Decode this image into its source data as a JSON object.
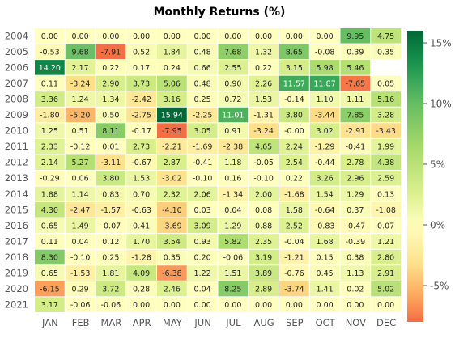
{
  "chart_data": {
    "type": "heatmap",
    "title": "Monthly Returns (%)",
    "xlabel": "",
    "ylabel": "",
    "x_categories": [
      "JAN",
      "FEB",
      "MAR",
      "APR",
      "MAY",
      "JUN",
      "JUL",
      "AUG",
      "SEP",
      "OCT",
      "NOV",
      "DEC"
    ],
    "y_categories": [
      "2004",
      "2005",
      "2006",
      "2007",
      "2008",
      "2009",
      "2010",
      "2011",
      "2012",
      "2013",
      "2014",
      "2015",
      "2016",
      "2017",
      "2018",
      "2019",
      "2020",
      "2021"
    ],
    "values": [
      [
        0.0,
        0.0,
        0.0,
        0.0,
        0.0,
        0.0,
        0.0,
        0.0,
        0.0,
        0.0,
        9.95,
        4.75
      ],
      [
        -0.53,
        9.68,
        -7.91,
        0.52,
        1.84,
        0.48,
        7.68,
        1.32,
        8.65,
        -0.08,
        0.39,
        0.35
      ],
      [
        14.2,
        2.17,
        0.22,
        0.17,
        0.24,
        0.66,
        2.55,
        0.22,
        3.15,
        5.98,
        5.46,
        null
      ],
      [
        0.11,
        -3.24,
        2.9,
        3.73,
        5.06,
        0.48,
        0.9,
        2.26,
        11.57,
        11.87,
        -7.65,
        0.05
      ],
      [
        3.36,
        1.24,
        1.34,
        -2.42,
        3.16,
        0.25,
        0.72,
        1.53,
        -0.14,
        1.1,
        1.11,
        5.16
      ],
      [
        -1.8,
        -5.2,
        0.5,
        -2.75,
        15.94,
        -2.25,
        11.01,
        -1.31,
        3.8,
        -3.44,
        7.85,
        3.28
      ],
      [
        1.25,
        0.51,
        8.11,
        -0.17,
        -7.95,
        3.05,
        0.91,
        -3.24,
        -0.0,
        3.02,
        -2.91,
        -3.43
      ],
      [
        2.33,
        -0.12,
        0.01,
        2.73,
        -2.21,
        -1.69,
        -2.38,
        4.65,
        2.24,
        -1.29,
        -0.41,
        1.99
      ],
      [
        2.14,
        5.27,
        -3.11,
        -0.67,
        2.87,
        -0.41,
        1.18,
        -0.05,
        2.54,
        -0.44,
        2.78,
        4.38
      ],
      [
        -0.29,
        0.06,
        3.8,
        1.53,
        -3.02,
        -0.1,
        0.16,
        -0.1,
        0.22,
        3.26,
        2.96,
        2.59
      ],
      [
        1.88,
        1.14,
        0.83,
        0.7,
        2.32,
        2.06,
        -1.34,
        2.0,
        -1.68,
        1.54,
        1.29,
        0.13
      ],
      [
        4.3,
        -2.47,
        -1.57,
        -0.63,
        -4.1,
        0.03,
        0.04,
        0.08,
        1.58,
        -0.64,
        0.37,
        -1.08
      ],
      [
        0.65,
        1.49,
        -0.07,
        0.41,
        -3.69,
        3.09,
        1.29,
        0.88,
        2.52,
        -0.83,
        -0.47,
        0.07
      ],
      [
        0.11,
        0.04,
        0.12,
        1.7,
        3.54,
        0.93,
        5.82,
        2.35,
        -0.04,
        1.68,
        -0.39,
        1.21
      ],
      [
        8.3,
        -0.1,
        0.25,
        -1.28,
        0.35,
        0.2,
        -0.06,
        3.19,
        -1.21,
        0.15,
        0.38,
        2.8
      ],
      [
        0.65,
        -1.53,
        1.81,
        4.09,
        -6.38,
        1.22,
        1.51,
        3.89,
        -0.76,
        0.45,
        1.13,
        2.91
      ],
      [
        -6.15,
        0.29,
        3.72,
        0.28,
        2.46,
        0.04,
        8.25,
        2.89,
        -3.74,
        1.41,
        0.02,
        5.02
      ],
      [
        3.17,
        -0.06,
        -0.06,
        0.0,
        0.0,
        0.0,
        0.0,
        0.0,
        0.0,
        0.0,
        0.0,
        0.0
      ]
    ],
    "cell_labels": [
      [
        "0.00",
        "0.00",
        "0.00",
        "0.00",
        "0.00",
        "0.00",
        "0.00",
        "0.00",
        "0.00",
        "0.00",
        "9.95",
        "4.75"
      ],
      [
        "-0.53",
        "9.68",
        "-7.91",
        "0.52",
        "1.84",
        "0.48",
        "7.68",
        "1.32",
        "8.65",
        "-0.08",
        "0.39",
        "0.35"
      ],
      [
        "14.20",
        "2.17",
        "0.22",
        "0.17",
        "0.24",
        "0.66",
        "2.55",
        "0.22",
        "3.15",
        "5.98",
        "5.46",
        ""
      ],
      [
        "0.11",
        "-3.24",
        "2.90",
        "3.73",
        "5.06",
        "0.48",
        "0.90",
        "2.26",
        "11.57",
        "11.87",
        "-7.65",
        "0.05"
      ],
      [
        "3.36",
        "1.24",
        "1.34",
        "-2.42",
        "3.16",
        "0.25",
        "0.72",
        "1.53",
        "-0.14",
        "1.10",
        "1.11",
        "5.16"
      ],
      [
        "-1.80",
        "-5.20",
        "0.50",
        "-2.75",
        "15.94",
        "-2.25",
        "11.01",
        "-1.31",
        "3.80",
        "-3.44",
        "7.85",
        "3.28"
      ],
      [
        "1.25",
        "0.51",
        "8.11",
        "-0.17",
        "-7.95",
        "3.05",
        "0.91",
        "-3.24",
        "-0.00",
        "3.02",
        "-2.91",
        "-3.43"
      ],
      [
        "2.33",
        "-0.12",
        "0.01",
        "2.73",
        "-2.21",
        "-1.69",
        "-2.38",
        "4.65",
        "2.24",
        "-1.29",
        "-0.41",
        "1.99"
      ],
      [
        "2.14",
        "5.27",
        "-3.11",
        "-0.67",
        "2.87",
        "-0.41",
        "1.18",
        "-0.05",
        "2.54",
        "-0.44",
        "2.78",
        "4.38"
      ],
      [
        "-0.29",
        "0.06",
        "3.80",
        "1.53",
        "-3.02",
        "-0.10",
        "0.16",
        "-0.10",
        "0.22",
        "3.26",
        "2.96",
        "2.59"
      ],
      [
        "1.88",
        "1.14",
        "0.83",
        "0.70",
        "2.32",
        "2.06",
        "-1.34",
        "2.00",
        "-1.68",
        "1.54",
        "1.29",
        "0.13"
      ],
      [
        "4.30",
        "-2.47",
        "-1.57",
        "-0.63",
        "-4.10",
        "0.03",
        "0.04",
        "0.08",
        "1.58",
        "-0.64",
        "0.37",
        "-1.08"
      ],
      [
        "0.65",
        "1.49",
        "-0.07",
        "0.41",
        "-3.69",
        "3.09",
        "1.29",
        "0.88",
        "2.52",
        "-0.83",
        "-0.47",
        "0.07"
      ],
      [
        "0.11",
        "0.04",
        "0.12",
        "1.70",
        "3.54",
        "0.93",
        "5.82",
        "2.35",
        "-0.04",
        "1.68",
        "-0.39",
        "1.21"
      ],
      [
        "8.30",
        "-0.10",
        "0.25",
        "-1.28",
        "0.35",
        "0.20",
        "-0.06",
        "3.19",
        "-1.21",
        "0.15",
        "0.38",
        "2.80"
      ],
      [
        "0.65",
        "-1.53",
        "1.81",
        "4.09",
        "-6.38",
        "1.22",
        "1.51",
        "3.89",
        "-0.76",
        "0.45",
        "1.13",
        "2.91"
      ],
      [
        "-6.15",
        "0.29",
        "3.72",
        "0.28",
        "2.46",
        "0.04",
        "8.25",
        "2.89",
        "-3.74",
        "1.41",
        "0.02",
        "5.02"
      ],
      [
        "3.17",
        "-0.06",
        "-0.06",
        "0.00",
        "0.00",
        "0.00",
        "0.00",
        "0.00",
        "0.00",
        "0.00",
        "0.00",
        "0.00"
      ]
    ],
    "color_range": [
      -8,
      16
    ],
    "colorscale": "RdYlGn",
    "colorbar": {
      "ticks": [
        -5,
        0,
        5,
        10,
        15
      ],
      "tick_labels": [
        "-5%",
        "0%",
        "5%",
        "10%",
        "15%"
      ]
    },
    "grid": false,
    "legend": "right"
  }
}
